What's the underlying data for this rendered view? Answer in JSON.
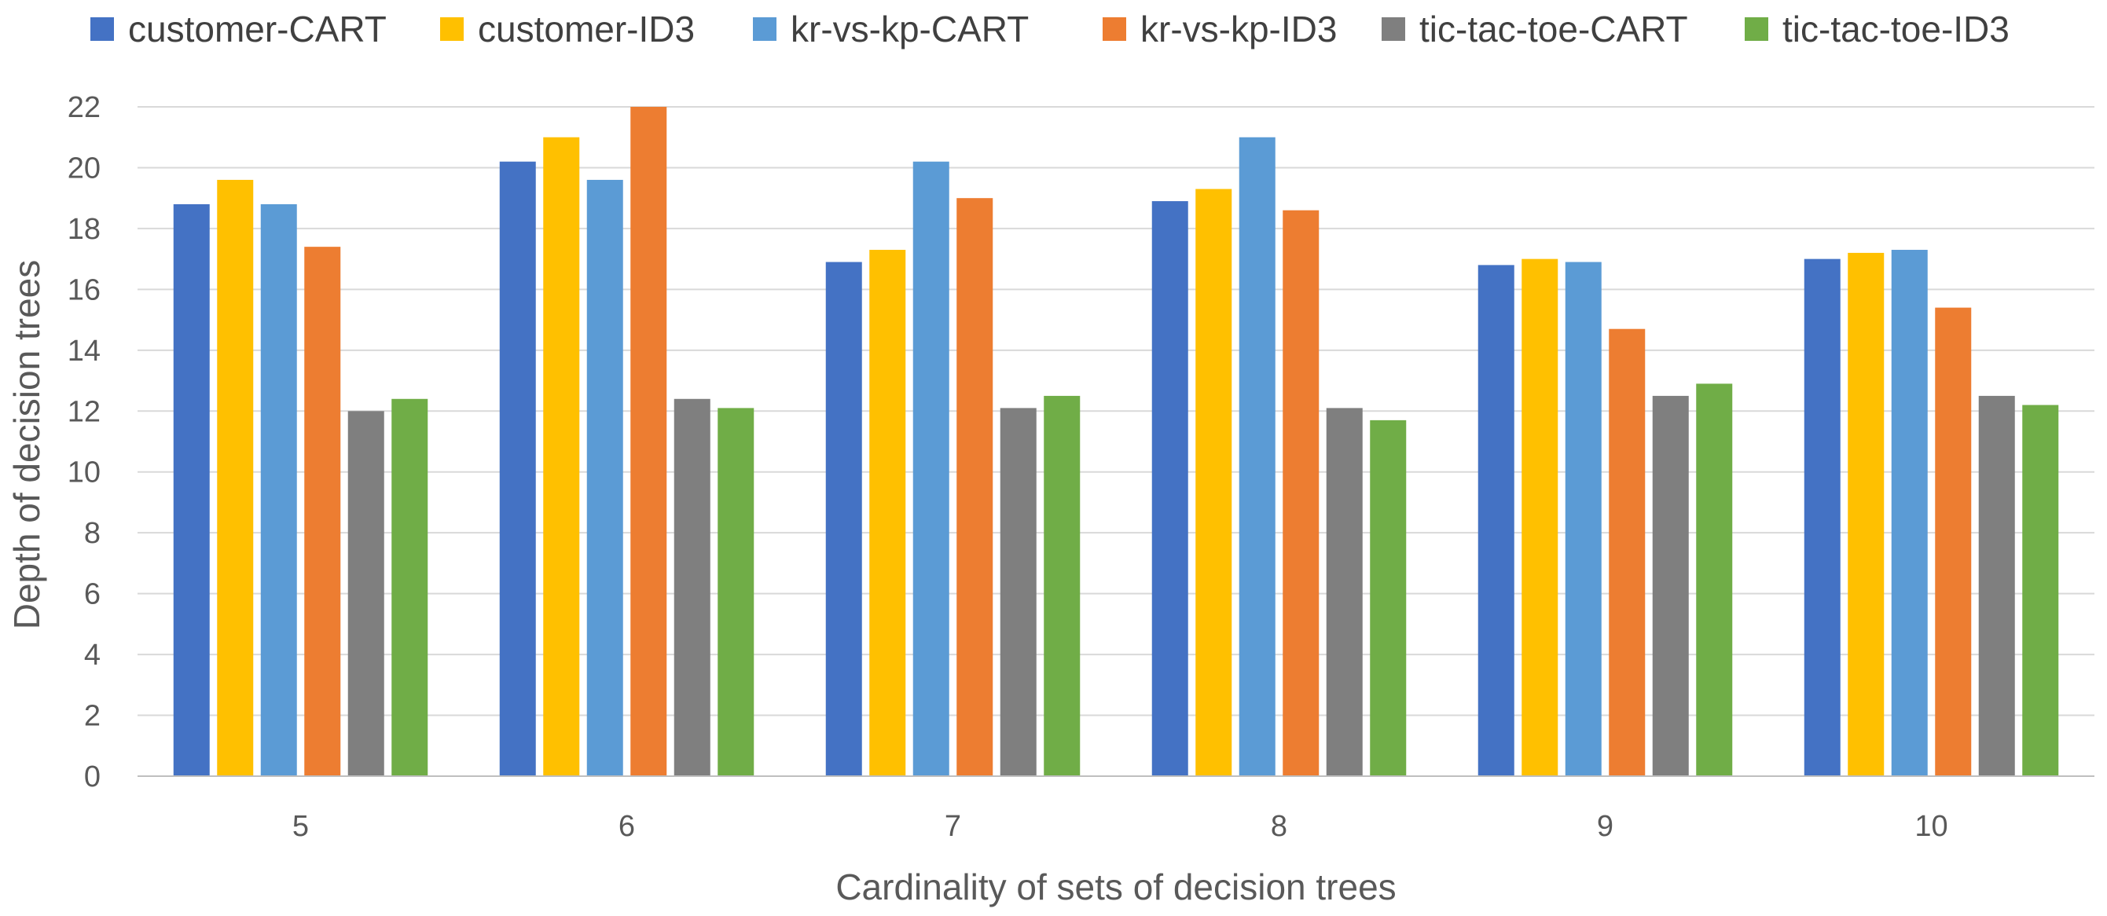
{
  "chart_data": {
    "type": "bar",
    "title": "",
    "xlabel": "Cardinality of sets of decision trees",
    "ylabel": "Depth of decision trees",
    "categories": [
      "5",
      "6",
      "7",
      "8",
      "9",
      "10"
    ],
    "ylim": [
      0,
      22
    ],
    "yticks": [
      "0",
      "2",
      "4",
      "6",
      "8",
      "10",
      "12",
      "14",
      "16",
      "18",
      "20",
      "22"
    ],
    "grid": true,
    "legend_position": "top",
    "series": [
      {
        "name": "customer-CART",
        "color": "#4472C4",
        "values": [
          18.8,
          20.2,
          16.9,
          18.9,
          16.8,
          17.0
        ]
      },
      {
        "name": "customer-ID3",
        "color": "#FFC000",
        "values": [
          19.6,
          21.0,
          17.3,
          19.3,
          17.0,
          17.2
        ]
      },
      {
        "name": "kr-vs-kp-CART",
        "color": "#5B9BD5",
        "values": [
          18.8,
          19.6,
          20.2,
          21.0,
          16.9,
          17.3
        ]
      },
      {
        "name": "kr-vs-kp-ID3",
        "color": "#ED7D31",
        "values": [
          17.4,
          22.0,
          19.0,
          18.6,
          14.7,
          15.4
        ]
      },
      {
        "name": "tic-tac-toe-CART",
        "color": "#7F7F7F",
        "values": [
          12.0,
          12.4,
          12.1,
          12.1,
          12.5,
          12.5
        ]
      },
      {
        "name": "tic-tac-toe-ID3",
        "color": "#70AD47",
        "values": [
          12.4,
          12.1,
          12.5,
          11.7,
          12.9,
          12.2
        ]
      }
    ]
  }
}
